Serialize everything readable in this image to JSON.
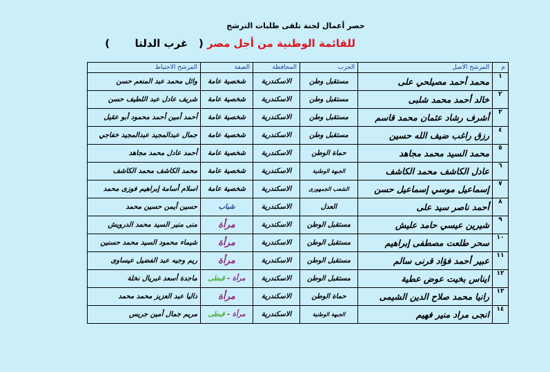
{
  "title": "حصر أعمال لجنة تلقى طلبات الترشح",
  "subtitle_red": "للقائمة الوطنية من أجل مصر",
  "subtitle_open": "(",
  "subtitle_region": "غرب الدلتا",
  "subtitle_close": ")",
  "colors": {
    "background": "#cbeefb",
    "subtitle": "#e0141e",
    "woman": "#8a2a7a",
    "copt": "#4cae3c"
  },
  "headers": {
    "num": "م",
    "original": "المرشح الأصل",
    "party": "الحزب",
    "governorate": "المحافظة",
    "category": "الصفة",
    "backup": "المرشح الاحتياط"
  },
  "rows": [
    {
      "num": "١",
      "original": "محمد أحمد مصيلحي على",
      "party": "مستقبل وطن",
      "governorate": "الاسكندرية",
      "category": "شخصية عامة",
      "category2": "",
      "backup": "وائل محمد عبد المنعم حسن"
    },
    {
      "num": "٢",
      "original": "خالد أحمد محمد شلبى",
      "party": "مستقبل وطن",
      "governorate": "الاسكندرية",
      "category": "شخصية عامة",
      "category2": "",
      "backup": "شريف عادل عبد اللطيف حسن"
    },
    {
      "num": "٣",
      "original": "أشرف رشاد عثمان محمد قاسم",
      "party": "مستقبل وطن",
      "governorate": "الاسكندرية",
      "category": "شخصية عامة",
      "category2": "",
      "backup": "أحمد أمين أحمد محمود أبو عقيل"
    },
    {
      "num": "٤",
      "original": "رزق راغب ضيف الله حسين",
      "party": "مستقبل وطن",
      "governorate": "الاسكندرية",
      "category": "شخصية عامة",
      "category2": "",
      "backup": "جمال عبدالمجيد عبدالمجيد خفاجي"
    },
    {
      "num": "٥",
      "original": "محمد السيد محمد مجاهد",
      "party": "حماة الوطن",
      "governorate": "الاسكندرية",
      "category": "شخصية عامة",
      "category2": "",
      "backup": "أحمد عادل محمد مجاهد"
    },
    {
      "num": "٦",
      "original": "عادل الكاشف محمد الكاشف",
      "party": "الجبهة الوطنية",
      "governorate": "الاسكندرية",
      "category": "شخصية عامة",
      "category2": "",
      "backup": "محمد الكاشف محمد الكاشف"
    },
    {
      "num": "٧",
      "original": "إسماعيل موسي إسماعيل حسن",
      "party": "الشعب الجمهورى",
      "governorate": "الاسكندرية",
      "category": "شخصية عامة",
      "category2": "",
      "backup": "اسلام أسامة إبراهيم فوزى محمد"
    },
    {
      "num": "٨",
      "original": "أحمد ناصر سيد على",
      "party": "العدل",
      "governorate": "الاسكندرية",
      "category": "شباب",
      "category2": "",
      "backup": "حسين أيمن حسين محمد"
    },
    {
      "num": "٩",
      "original": "شيرين عيسي حامد عليش",
      "party": "مستقبل الوطن",
      "governorate": "الاسكندرية",
      "category": "مرأة",
      "category2": "",
      "backup": "منى منير السيد محمد الدرويش"
    },
    {
      "num": "١٠",
      "original": "سحر طلعت مصطفى إبراهيم",
      "party": "مستقبل الوطن",
      "governorate": "الاسكندرية",
      "category": "مرأة",
      "category2": "",
      "backup": "شيماء محمود السيد محمد حسنين"
    },
    {
      "num": "١١",
      "original": "عبير أحمد فؤاد قرنى سالم",
      "party": "مستقبل الوطن",
      "governorate": "الاسكندرية",
      "category": "مرأة",
      "category2": "",
      "backup": "ريم وجيه عبد الفضيل عيساوى"
    },
    {
      "num": "١٢",
      "original": "ايناس بخيت عوض عطية",
      "party": "مستقبل الوطن",
      "governorate": "الاسكندرية",
      "category": "مرأة -",
      "category2": "قبطى",
      "backup": "ماجدة أسعد غبريال نخلة"
    },
    {
      "num": "١٣",
      "original": "رانيا محمد صلاح الدين الشيمى",
      "party": "حماة الوطن",
      "governorate": "الاسكندرية",
      "category": "مرأة",
      "category2": "",
      "backup": "داليا عبد العزيز محمد محمد"
    },
    {
      "num": "١٤",
      "original": "انجى مراد منير فهيم",
      "party": "الجبهة الوطنية",
      "governorate": "الاسكندرية",
      "category": "مرأة -",
      "category2": "قبطى",
      "backup": "مريم جمال أمين جريس"
    }
  ]
}
